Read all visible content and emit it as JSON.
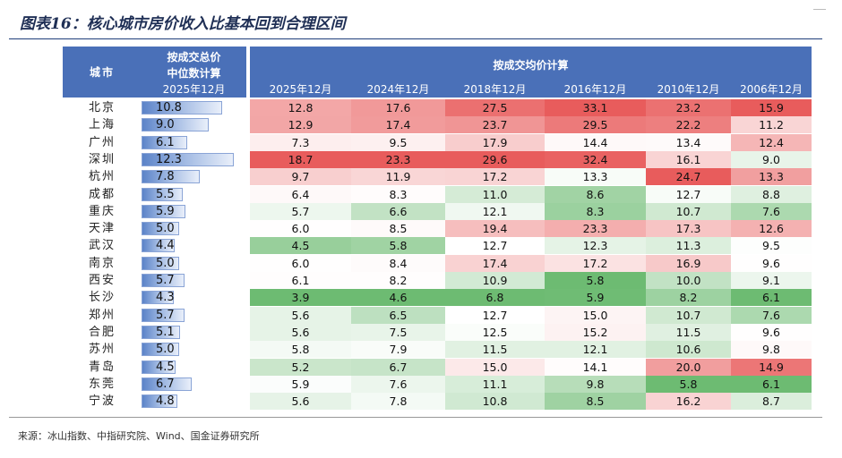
{
  "title": "图表16：核心城市房价收入比基本回到合理区间",
  "source": "来源：冰山指数、中指研究院、Wind、国金证券研究所",
  "colors": {
    "header": "#4a70b8",
    "low": "#6dbb72",
    "mid": "#ffffff",
    "high": "#e85c5c"
  },
  "headers": {
    "city": "城市",
    "total_line1": "按成交总价",
    "total_line2": "中位数计算",
    "total_line3": "2025年12月",
    "avg_group": "按成交均价计算",
    "years": [
      "2025年12月",
      "2024年12月",
      "2018年12月",
      "2016年12月",
      "2010年12月",
      "2006年12月"
    ]
  },
  "chart_data": {
    "type": "table",
    "title": "图表16：核心城市房价收入比基本回到合理区间",
    "bar_column": {
      "label": "按成交总价中位数计算 2025年12月",
      "max": 14
    },
    "columns": [
      "2025年12月",
      "2024年12月",
      "2018年12月",
      "2016年12月",
      "2010年12月",
      "2006年12月"
    ],
    "rows": [
      {
        "city": "北京",
        "total": "10.8",
        "avg": [
          "12.8",
          "17.6",
          "27.5",
          "33.1",
          "23.2",
          "15.9"
        ]
      },
      {
        "city": "上海",
        "total": "9.0",
        "avg": [
          "12.9",
          "17.4",
          "23.7",
          "29.5",
          "22.2",
          "11.2"
        ]
      },
      {
        "city": "广州",
        "total": "6.1",
        "avg": [
          "7.3",
          "9.5",
          "17.9",
          "14.4",
          "13.4",
          "12.4"
        ]
      },
      {
        "city": "深圳",
        "total": "12.3",
        "avg": [
          "18.7",
          "23.3",
          "29.6",
          "32.4",
          "16.1",
          "9.0"
        ]
      },
      {
        "city": "杭州",
        "total": "7.8",
        "avg": [
          "9.7",
          "11.9",
          "17.2",
          "13.3",
          "24.7",
          "13.3"
        ]
      },
      {
        "city": "成都",
        "total": "5.5",
        "avg": [
          "6.4",
          "8.3",
          "11.0",
          "8.6",
          "12.7",
          "8.8"
        ]
      },
      {
        "city": "重庆",
        "total": "5.9",
        "avg": [
          "5.7",
          "6.6",
          "12.1",
          "8.3",
          "10.7",
          "7.6"
        ]
      },
      {
        "city": "天津",
        "total": "5.0",
        "avg": [
          "6.0",
          "8.5",
          "19.4",
          "23.3",
          "17.3",
          "12.6"
        ]
      },
      {
        "city": "武汉",
        "total": "4.4",
        "avg": [
          "4.5",
          "5.8",
          "12.7",
          "12.3",
          "11.3",
          "9.5"
        ]
      },
      {
        "city": "南京",
        "total": "5.0",
        "avg": [
          "6.0",
          "8.4",
          "17.4",
          "17.2",
          "16.9",
          "9.6"
        ]
      },
      {
        "city": "西安",
        "total": "5.7",
        "avg": [
          "6.1",
          "8.2",
          "10.9",
          "5.8",
          "10.0",
          "9.1"
        ]
      },
      {
        "city": "长沙",
        "total": "4.3",
        "avg": [
          "3.9",
          "4.6",
          "6.8",
          "5.9",
          "8.2",
          "6.1"
        ]
      },
      {
        "city": "郑州",
        "total": "5.7",
        "avg": [
          "5.6",
          "6.5",
          "12.7",
          "15.0",
          "10.7",
          "7.6"
        ]
      },
      {
        "city": "合肥",
        "total": "5.1",
        "avg": [
          "5.6",
          "7.5",
          "12.5",
          "15.2",
          "11.5",
          "9.6"
        ]
      },
      {
        "city": "苏州",
        "total": "5.0",
        "avg": [
          "5.8",
          "7.9",
          "11.5",
          "12.1",
          "10.6",
          "9.8"
        ]
      },
      {
        "city": "青岛",
        "total": "4.5",
        "avg": [
          "5.2",
          "6.7",
          "15.0",
          "14.1",
          "20.0",
          "14.9"
        ]
      },
      {
        "city": "东莞",
        "total": "6.7",
        "avg": [
          "5.9",
          "7.6",
          "11.1",
          "9.8",
          "5.8",
          "6.1"
        ]
      },
      {
        "city": "宁波",
        "total": "4.8",
        "avg": [
          "5.6",
          "7.8",
          "10.8",
          "8.5",
          "16.2",
          "8.7"
        ]
      }
    ]
  }
}
